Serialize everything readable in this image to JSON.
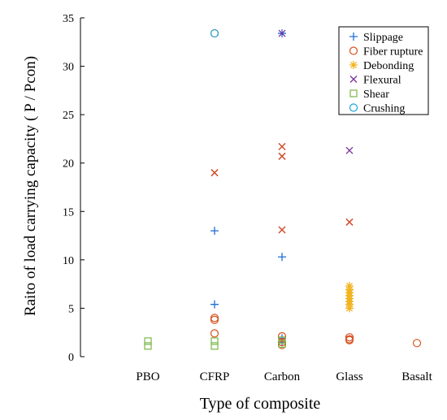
{
  "chart_data": {
    "type": "scatter",
    "title": "",
    "xlabel": "Type of composite",
    "ylabel": "Raito of load carrying capacity  ( P / Pcon)",
    "categories": [
      "PBO",
      "CFRP",
      "Carbon",
      "Glass",
      "Basalt"
    ],
    "ylim": [
      0,
      35
    ],
    "yticks": [
      0,
      5,
      10,
      15,
      20,
      25,
      30,
      35
    ],
    "grid": false,
    "legend_position": "top-right",
    "series": [
      {
        "name": "Slippage",
        "marker": "plus",
        "color": "#1f6fd6",
        "points": [
          {
            "x": "CFRP",
            "y": 13.0
          },
          {
            "x": "CFRP",
            "y": 5.4
          },
          {
            "x": "Carbon",
            "y": 33.4
          },
          {
            "x": "Carbon",
            "y": 10.3
          },
          {
            "x": "Carbon",
            "y": 1.9
          },
          {
            "x": "Carbon",
            "y": 1.5
          }
        ]
      },
      {
        "name": "Fiber rupture",
        "marker": "circle",
        "color": "#d9501e",
        "points": [
          {
            "x": "CFRP",
            "y": 33.4
          },
          {
            "x": "CFRP",
            "y": 4.0
          },
          {
            "x": "CFRP",
            "y": 3.8
          },
          {
            "x": "CFRP",
            "y": 2.4
          },
          {
            "x": "Carbon",
            "y": 2.1
          },
          {
            "x": "Carbon",
            "y": 1.5
          },
          {
            "x": "Carbon",
            "y": 1.2
          },
          {
            "x": "Glass",
            "y": 2.0
          },
          {
            "x": "Glass",
            "y": 1.8
          },
          {
            "x": "Glass",
            "y": 1.7
          },
          {
            "x": "Basalt",
            "y": 1.4
          }
        ]
      },
      {
        "name": "Debonding",
        "marker": "asterisk",
        "color": "#f2b21c",
        "points": [
          {
            "x": "Glass",
            "y": 7.3
          },
          {
            "x": "Glass",
            "y": 6.9
          },
          {
            "x": "Glass",
            "y": 6.6
          },
          {
            "x": "Glass",
            "y": 6.3
          },
          {
            "x": "Glass",
            "y": 6.0
          },
          {
            "x": "Glass",
            "y": 5.7
          },
          {
            "x": "Glass",
            "y": 5.4
          },
          {
            "x": "Glass",
            "y": 5.0
          }
        ]
      },
      {
        "name": "Flexural",
        "marker": "x",
        "color": "#7b2f9e",
        "points": [
          {
            "x": "CFRP",
            "y": 19.0
          },
          {
            "x": "Carbon",
            "y": 33.4
          },
          {
            "x": "Carbon",
            "y": 21.7
          },
          {
            "x": "Carbon",
            "y": 20.7
          },
          {
            "x": "Carbon",
            "y": 13.1
          },
          {
            "x": "Glass",
            "y": 21.3
          },
          {
            "x": "Glass",
            "y": 13.9
          }
        ]
      },
      {
        "name": "Shear",
        "marker": "square",
        "color": "#7ab648",
        "points": [
          {
            "x": "PBO",
            "y": 1.6
          },
          {
            "x": "PBO",
            "y": 1.1
          },
          {
            "x": "CFRP",
            "y": 1.6
          },
          {
            "x": "CFRP",
            "y": 1.1
          },
          {
            "x": "Carbon",
            "y": 1.7
          },
          {
            "x": "Carbon",
            "y": 1.3
          }
        ]
      },
      {
        "name": "Crushing",
        "marker": "circle",
        "color": "#1ba6d8",
        "points": [
          {
            "x": "CFRP",
            "y": 33.4
          }
        ]
      }
    ],
    "overlay_marks": [
      {
        "x": "CFRP",
        "y": 19.0,
        "marker": "x",
        "color": "#d9501e"
      },
      {
        "x": "Carbon",
        "y": 21.7,
        "marker": "x",
        "color": "#d9501e"
      },
      {
        "x": "Carbon",
        "y": 20.7,
        "marker": "x",
        "color": "#d9501e"
      },
      {
        "x": "Carbon",
        "y": 13.1,
        "marker": "x",
        "color": "#d9501e"
      },
      {
        "x": "Glass",
        "y": 13.9,
        "marker": "x",
        "color": "#d9501e"
      }
    ]
  }
}
